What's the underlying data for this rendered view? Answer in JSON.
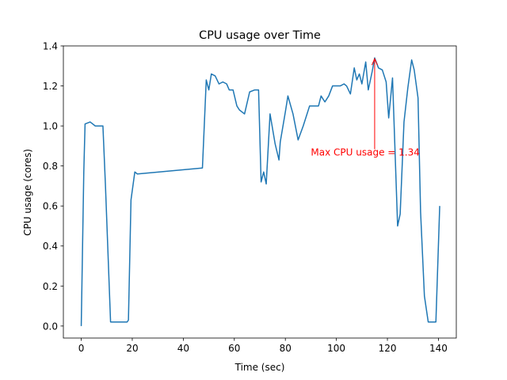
{
  "chart_data": {
    "type": "line",
    "title": "CPU usage over Time",
    "xlabel": "Time (sec)",
    "ylabel": "CPU usage (cores)",
    "xlim": [
      -7,
      147
    ],
    "ylim": [
      -0.06,
      1.4
    ],
    "xticks": [
      0,
      20,
      40,
      60,
      80,
      100,
      120,
      140
    ],
    "yticks": [
      0.0,
      0.2,
      0.4,
      0.6,
      0.8,
      1.0,
      1.2,
      1.4
    ],
    "xtick_labels": [
      "0",
      "20",
      "40",
      "60",
      "80",
      "100",
      "120",
      "140"
    ],
    "ytick_labels": [
      "0.0",
      "0.2",
      "0.4",
      "0.6",
      "0.8",
      "1.0",
      "1.2",
      "1.4"
    ],
    "grid": false,
    "series": [
      {
        "color": "#1f77b4",
        "x": [
          0,
          1,
          1.5,
          3.5,
          5.5,
          8.5,
          9.5,
          11.5,
          13.5,
          15.5,
          18,
          18.5,
          19.5,
          21,
          22,
          47.5,
          49,
          50,
          51,
          52.5,
          54,
          55.5,
          57,
          58,
          59.5,
          61,
          62,
          64,
          66,
          68,
          69.5,
          70.5,
          71.5,
          72.5,
          74,
          76,
          77.5,
          78,
          80,
          81,
          83,
          85,
          87,
          89.5,
          91,
          93,
          94,
          95.5,
          97,
          98.5,
          100,
          101.5,
          103,
          104,
          105.5,
          107,
          108,
          109,
          110,
          111.5,
          112.5,
          114,
          115,
          116.5,
          118,
          119.5,
          120.5,
          122,
          124,
          125,
          126.5,
          128,
          129.5,
          130.5,
          132,
          133,
          134.5,
          136,
          138,
          139,
          140.5
        ],
        "y": [
          0.0,
          0.77,
          1.01,
          1.02,
          1.0,
          1.0,
          0.7,
          0.02,
          0.02,
          0.02,
          0.02,
          0.03,
          0.63,
          0.77,
          0.76,
          0.79,
          1.23,
          1.18,
          1.26,
          1.25,
          1.21,
          1.22,
          1.21,
          1.18,
          1.18,
          1.1,
          1.08,
          1.06,
          1.17,
          1.18,
          1.18,
          0.72,
          0.77,
          0.71,
          1.06,
          0.91,
          0.83,
          0.92,
          1.07,
          1.15,
          1.06,
          0.93,
          1.0,
          1.1,
          1.1,
          1.1,
          1.15,
          1.12,
          1.15,
          1.2,
          1.2,
          1.2,
          1.21,
          1.2,
          1.16,
          1.29,
          1.23,
          1.26,
          1.21,
          1.32,
          1.18,
          1.27,
          1.34,
          1.29,
          1.28,
          1.22,
          1.04,
          1.24,
          0.5,
          0.56,
          1.02,
          1.19,
          1.33,
          1.28,
          1.14,
          0.57,
          0.15,
          0.02,
          0.02,
          0.02,
          0.6
        ]
      }
    ],
    "annotation": {
      "text": "Max CPU usage = 1.34",
      "x": 115,
      "y": 1.34,
      "text_x": 90,
      "text_y": 0.84,
      "color": "#ff0000"
    }
  }
}
